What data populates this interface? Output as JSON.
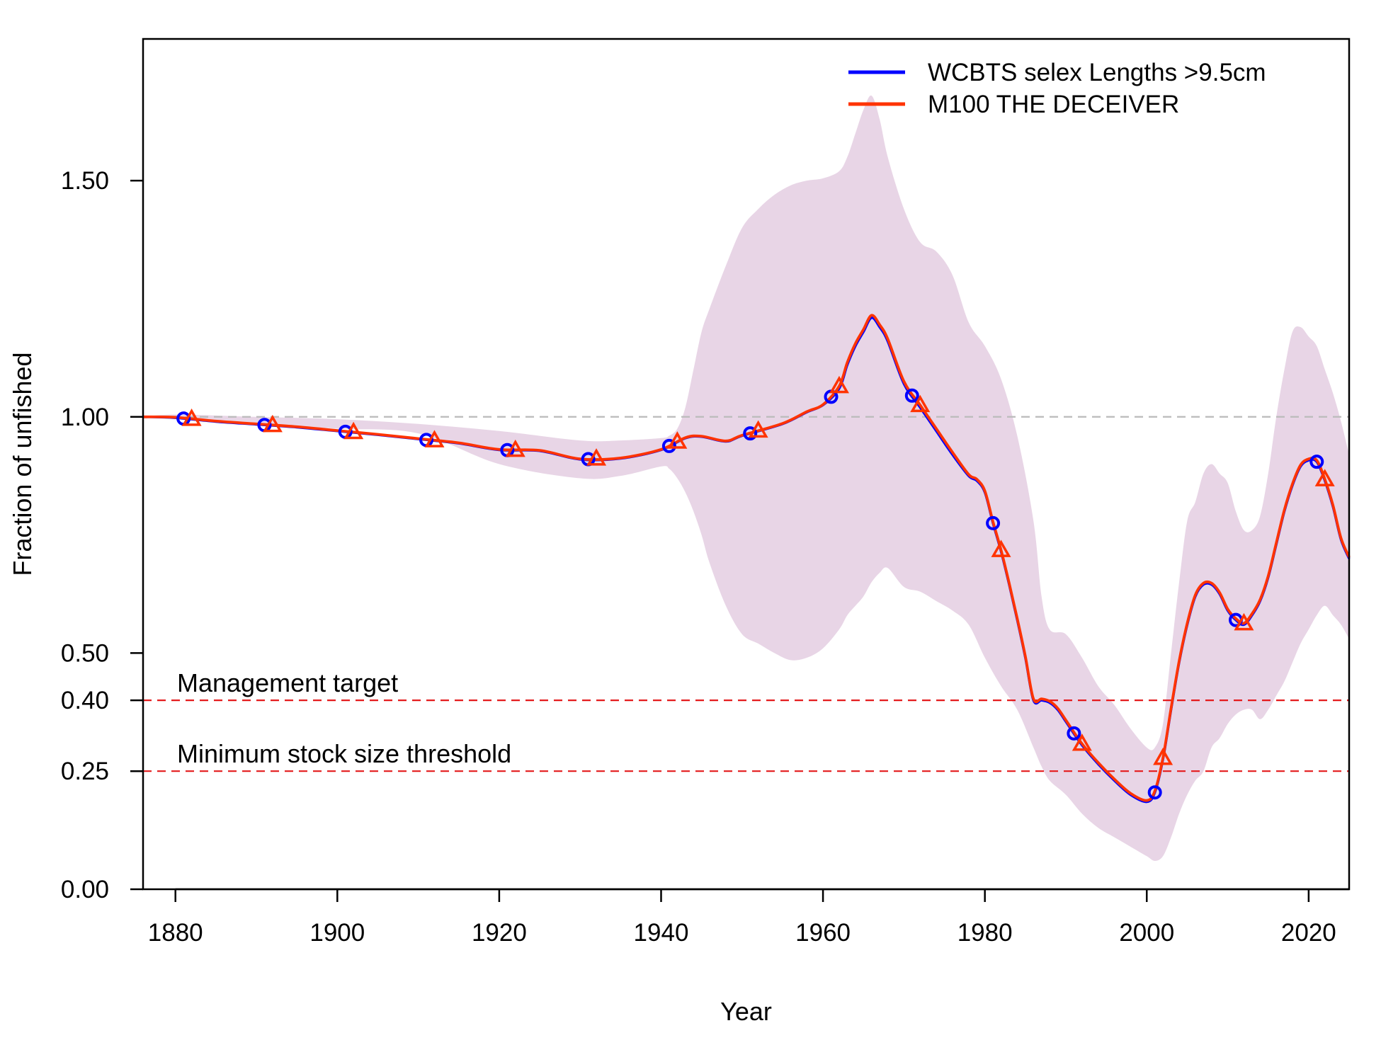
{
  "chart_data": {
    "type": "line",
    "title": "",
    "xlabel": "Year",
    "ylabel": "Fraction of unfished",
    "xlim": [
      1876,
      2025
    ],
    "ylim": [
      0,
      1.8
    ],
    "x_ticks": [
      1880,
      1900,
      1920,
      1940,
      1960,
      1980,
      2000,
      2020
    ],
    "x_tick_labels": [
      "1880",
      "1900",
      "1920",
      "1940",
      "1960",
      "1980",
      "2000",
      "2020"
    ],
    "y_ticks": [
      0,
      0.25,
      0.4,
      0.5,
      1.0,
      1.5
    ],
    "y_tick_labels": [
      "0.00",
      "0.25",
      "0.40",
      "0.50",
      "1.00",
      "1.50"
    ],
    "legend_position": "top-right",
    "colors": {
      "series_1": "#0000ff",
      "series_2": "#ff3300",
      "band": "#e8d5e6",
      "reference_lines": "#e41a1c",
      "unfished_line": "#bbbbbb"
    },
    "reference_lines": [
      {
        "y": 1.0,
        "label": "",
        "style": "dashed",
        "color": "#bbbbbb"
      },
      {
        "y": 0.4,
        "label": "Management target",
        "style": "dashed",
        "color": "#e41a1c"
      },
      {
        "y": 0.25,
        "label": "Minimum stock size threshold",
        "style": "dashed",
        "color": "#e41a1c"
      }
    ],
    "x": [
      1876,
      1880,
      1885,
      1890,
      1895,
      1900,
      1905,
      1910,
      1915,
      1920,
      1925,
      1930,
      1935,
      1940,
      1943,
      1945,
      1948,
      1950,
      1955,
      1958,
      1960,
      1962,
      1963,
      1964,
      1965,
      1966,
      1967,
      1968,
      1970,
      1972,
      1974,
      1976,
      1978,
      1979,
      1980,
      1981,
      1982,
      1983,
      1984,
      1985,
      1986,
      1987,
      1988,
      1989,
      1990,
      1992,
      1994,
      1996,
      1998,
      2000,
      2001,
      2002,
      2003,
      2004,
      2005,
      2006,
      2007,
      2008,
      2009,
      2010,
      2011,
      2012,
      2013,
      2014,
      2015,
      2016,
      2017,
      2018,
      2019,
      2020,
      2021,
      2022,
      2023,
      2024,
      2025
    ],
    "series": [
      {
        "name": "WCBTS selex Lengths >9.5cm",
        "marker": "circle",
        "marker_x": [
          1881,
          1891,
          1901,
          1911,
          1921,
          1931,
          1941,
          1951,
          1961,
          1971,
          1981,
          1991,
          2001,
          2011,
          2021
        ],
        "values": [
          1.0,
          0.998,
          0.99,
          0.984,
          0.978,
          0.97,
          0.962,
          0.953,
          0.944,
          0.93,
          0.928,
          0.91,
          0.912,
          0.93,
          0.955,
          0.958,
          0.948,
          0.96,
          0.985,
          1.01,
          1.025,
          1.06,
          1.11,
          1.15,
          1.18,
          1.21,
          1.19,
          1.16,
          1.07,
          1.02,
          0.97,
          0.92,
          0.875,
          0.865,
          0.84,
          0.775,
          0.715,
          0.645,
          0.57,
          0.49,
          0.4,
          0.4,
          0.395,
          0.38,
          0.355,
          0.305,
          0.265,
          0.23,
          0.2,
          0.185,
          0.205,
          0.275,
          0.38,
          0.48,
          0.56,
          0.62,
          0.645,
          0.645,
          0.625,
          0.59,
          0.57,
          0.56,
          0.58,
          0.61,
          0.66,
          0.73,
          0.8,
          0.855,
          0.895,
          0.908,
          0.905,
          0.865,
          0.81,
          0.74,
          0.7
        ]
      },
      {
        "name": "M100 THE DECEIVER",
        "marker": "triangle",
        "marker_x": [
          1882,
          1892,
          1902,
          1912,
          1922,
          1932,
          1942,
          1952,
          1962,
          1972,
          1982,
          1992,
          2002,
          2012,
          2022
        ],
        "values": [
          1.0,
          0.999,
          0.991,
          0.985,
          0.979,
          0.971,
          0.963,
          0.954,
          0.945,
          0.931,
          0.929,
          0.911,
          0.913,
          0.931,
          0.956,
          0.959,
          0.949,
          0.961,
          0.986,
          1.011,
          1.026,
          1.065,
          1.115,
          1.155,
          1.185,
          1.215,
          1.195,
          1.165,
          1.075,
          1.025,
          0.975,
          0.925,
          0.878,
          0.868,
          0.843,
          0.778,
          0.718,
          0.648,
          0.573,
          0.493,
          0.403,
          0.403,
          0.398,
          0.383,
          0.358,
          0.308,
          0.268,
          0.233,
          0.203,
          0.188,
          0.208,
          0.278,
          0.383,
          0.483,
          0.563,
          0.623,
          0.648,
          0.648,
          0.628,
          0.593,
          0.573,
          0.563,
          0.583,
          0.613,
          0.663,
          0.733,
          0.803,
          0.858,
          0.898,
          0.911,
          0.908,
          0.868,
          0.813,
          0.743,
          0.703
        ]
      }
    ],
    "band": {
      "x": [
        1876,
        1880,
        1890,
        1900,
        1910,
        1920,
        1930,
        1935,
        1940,
        1941,
        1942,
        1943,
        1944,
        1945,
        1946,
        1948,
        1950,
        1952,
        1954,
        1956,
        1958,
        1960,
        1962,
        1963,
        1964,
        1965,
        1966,
        1967,
        1968,
        1970,
        1972,
        1974,
        1976,
        1978,
        1980,
        1982,
        1984,
        1986,
        1987,
        1988,
        1990,
        1992,
        1994,
        1996,
        1998,
        2000,
        2001,
        2002,
        2003,
        2004,
        2005,
        2006,
        2007,
        2008,
        2009,
        2010,
        2011,
        2012,
        2013,
        2014,
        2015,
        2016,
        2017,
        2018,
        2019,
        2020,
        2021,
        2022,
        2023,
        2024,
        2025
      ],
      "upper": [
        1.0,
        1.005,
        1.0,
        0.995,
        0.985,
        0.97,
        0.95,
        0.95,
        0.955,
        0.96,
        0.975,
        1.02,
        1.1,
        1.18,
        1.23,
        1.32,
        1.4,
        1.44,
        1.47,
        1.49,
        1.5,
        1.505,
        1.52,
        1.55,
        1.6,
        1.65,
        1.68,
        1.63,
        1.55,
        1.44,
        1.37,
        1.35,
        1.3,
        1.2,
        1.15,
        1.08,
        0.96,
        0.78,
        0.62,
        0.55,
        0.54,
        0.49,
        0.43,
        0.39,
        0.34,
        0.3,
        0.3,
        0.35,
        0.5,
        0.65,
        0.78,
        0.82,
        0.88,
        0.9,
        0.88,
        0.86,
        0.8,
        0.76,
        0.76,
        0.79,
        0.88,
        1.0,
        1.1,
        1.18,
        1.19,
        1.17,
        1.15,
        1.1,
        1.05,
        0.99,
        0.92
      ],
      "lower": [
        1.0,
        0.995,
        0.985,
        0.975,
        0.965,
        0.9,
        0.87,
        0.875,
        0.895,
        0.89,
        0.87,
        0.84,
        0.8,
        0.75,
        0.69,
        0.6,
        0.54,
        0.52,
        0.5,
        0.485,
        0.49,
        0.51,
        0.55,
        0.58,
        0.6,
        0.62,
        0.65,
        0.67,
        0.68,
        0.64,
        0.63,
        0.61,
        0.59,
        0.56,
        0.49,
        0.43,
        0.38,
        0.3,
        0.26,
        0.23,
        0.2,
        0.16,
        0.13,
        0.11,
        0.09,
        0.07,
        0.06,
        0.07,
        0.11,
        0.16,
        0.2,
        0.23,
        0.25,
        0.3,
        0.32,
        0.35,
        0.37,
        0.38,
        0.38,
        0.36,
        0.38,
        0.41,
        0.44,
        0.48,
        0.52,
        0.55,
        0.58,
        0.6,
        0.58,
        0.56,
        0.53
      ]
    },
    "legend": [
      {
        "label": "WCBTS selex Lengths >9.5cm",
        "color": "#0000ff"
      },
      {
        "label": "M100 THE DECEIVER",
        "color": "#ff3300"
      }
    ]
  }
}
